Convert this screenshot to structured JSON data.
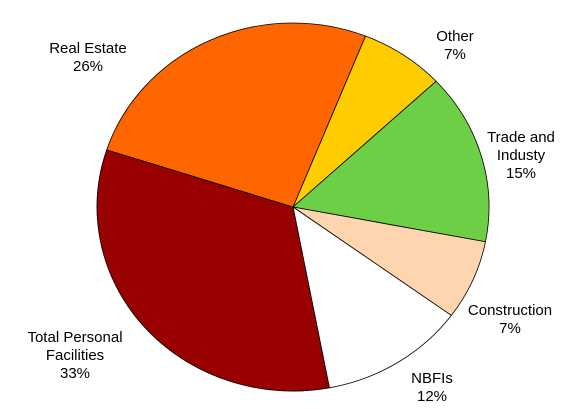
{
  "chart_data": {
    "type": "pie",
    "categories": [
      "Other",
      "Trade and Industy",
      "Construction",
      "NBFIs",
      "Total Personal Facilities",
      "Real Estate"
    ],
    "values": [
      7,
      15,
      7,
      12,
      33,
      26
    ],
    "value_labels": [
      "7%",
      "15%",
      "7%",
      "12%",
      "33%",
      "26%"
    ],
    "colors": [
      "#ffcc00",
      "#6ccf45",
      "#ffd5b0",
      "#ffffff",
      "#990000",
      "#ff6600"
    ]
  }
}
